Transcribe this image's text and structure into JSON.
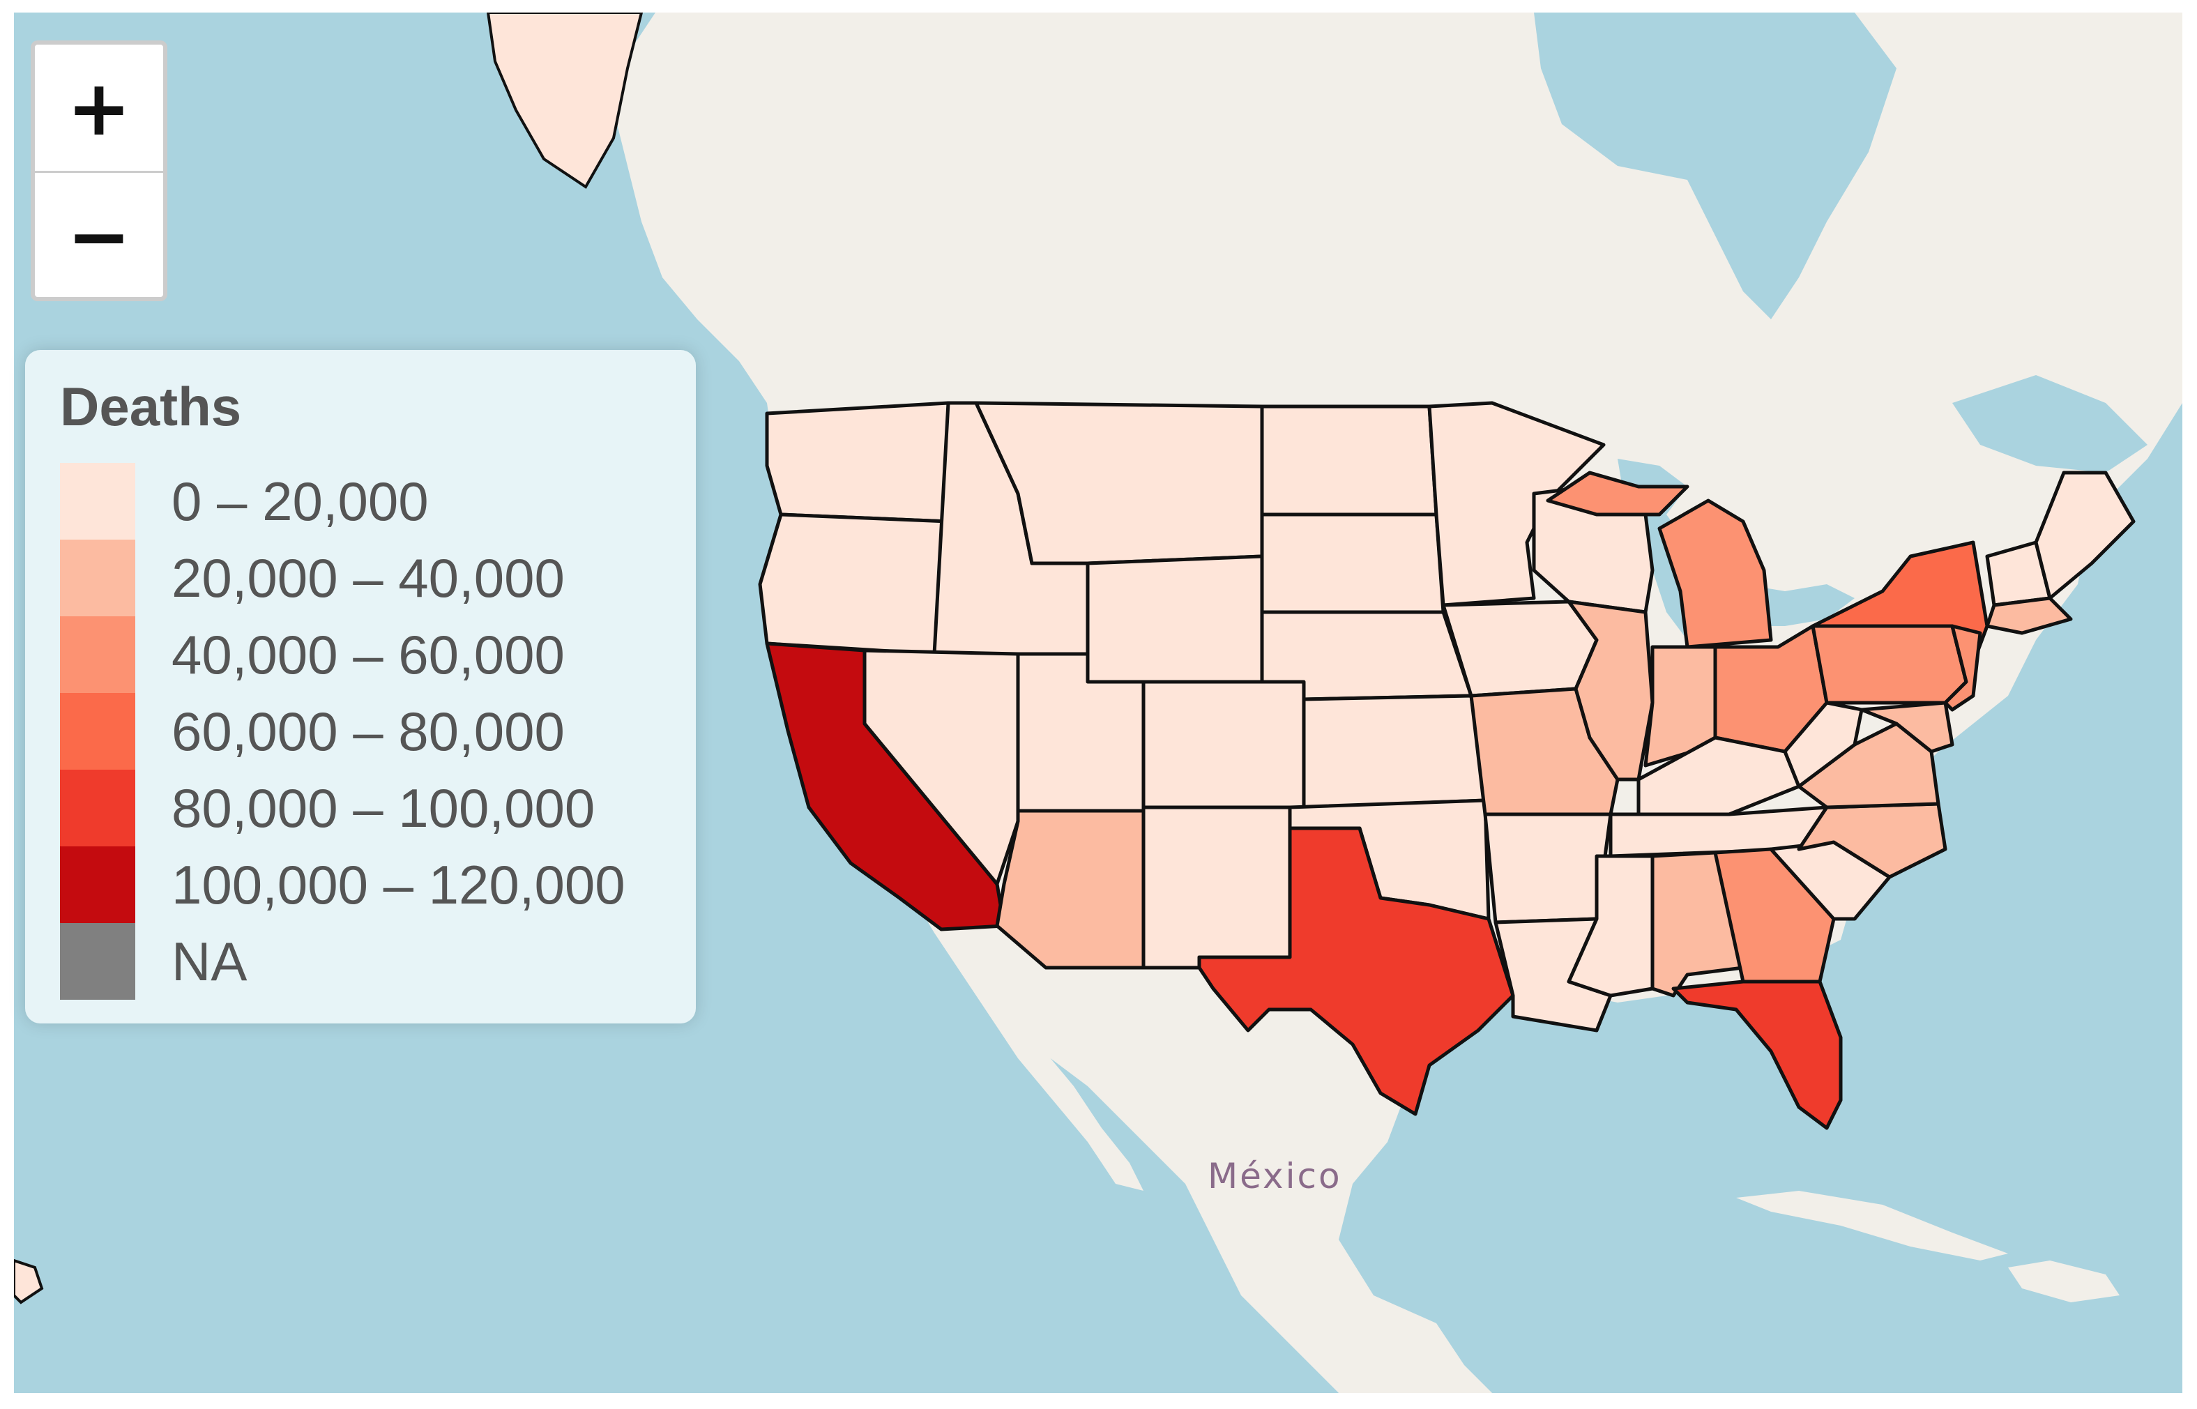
{
  "map": {
    "basemap_label": "México",
    "zoom": {
      "in_label": "+",
      "out_label": "−"
    },
    "legend": {
      "title": "Deaths",
      "classes": [
        {
          "label": "0 – 20,000",
          "color": "#fee5d9"
        },
        {
          "label": "20,000 – 40,000",
          "color": "#fcbba1"
        },
        {
          "label": "40,000 – 60,000",
          "color": "#fc9272"
        },
        {
          "label": "60,000 – 80,000",
          "color": "#fb6a4a"
        },
        {
          "label": "80,000 – 100,000",
          "color": "#ef3b2c"
        },
        {
          "label": "100,000 – 120,000",
          "color": "#c40b0f"
        },
        {
          "label": "NA",
          "color": "#808080"
        }
      ]
    },
    "colors": {
      "water": "#aad3df",
      "land": "#f2efe9",
      "state_border": "#111111"
    }
  }
}
